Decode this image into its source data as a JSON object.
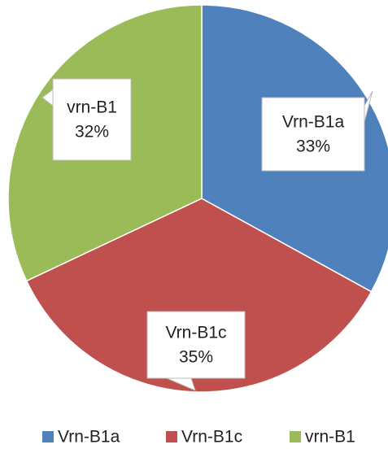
{
  "chart_data": {
    "type": "pie",
    "categories": [
      "Vrn-B1a",
      "Vrn-B1c",
      "vrn-B1"
    ],
    "values": [
      33,
      35,
      32
    ],
    "value_labels": [
      "33%",
      "35%",
      "32%"
    ],
    "colors": [
      "#4f81bd",
      "#c0504d",
      "#9bbb59"
    ],
    "legend": "bottom"
  }
}
